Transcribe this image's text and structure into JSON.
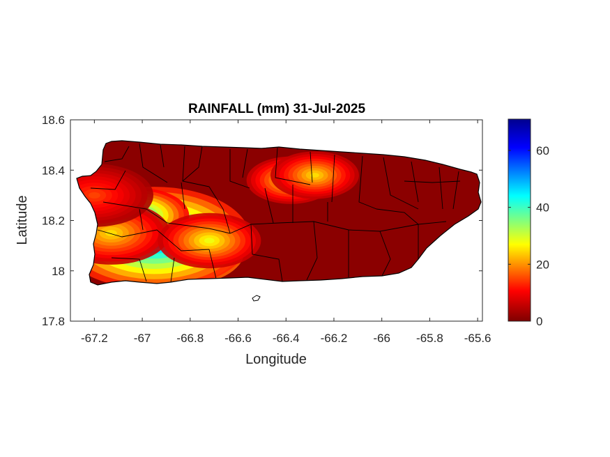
{
  "map": {
    "title": "RAINFALL (mm) 31-Jul-2025",
    "xlabel": "Longitude",
    "ylabel": "Latitude",
    "xlim": [
      -67.3,
      -65.58
    ],
    "ylim": [
      17.8,
      18.6
    ],
    "xticks": [
      -67.2,
      -67,
      -66.8,
      -66.6,
      -66.4,
      -66.2,
      -66,
      -65.8,
      -65.6
    ],
    "yticks": [
      17.8,
      18,
      18.2,
      18.4,
      18.6
    ],
    "xtick_labels": [
      "-67.2",
      "-67",
      "-66.8",
      "-66.6",
      "-66.4",
      "-66.2",
      "-66",
      "-65.8",
      "-65.6"
    ],
    "ytick_labels": [
      "17.8",
      "18",
      "18.2",
      "18.4",
      "18.6"
    ],
    "colorbar": {
      "min": 0,
      "max": 71,
      "ticks": [
        0,
        20,
        40,
        60
      ],
      "tick_labels": [
        "0",
        "20",
        "40",
        "60"
      ],
      "colors": [
        "#7f0000",
        "#ff0000",
        "#ffff00",
        "#00ffff",
        "#0000ff",
        "#00008f"
      ]
    },
    "background_color": "#8b0000",
    "rainfall_hotspots": [
      {
        "lon": -66.85,
        "lat": 18.08,
        "mm": 71,
        "spread": 0.09
      },
      {
        "lon": -66.95,
        "lat": 18.13,
        "mm": 55,
        "spread": 0.13
      },
      {
        "lon": -67.02,
        "lat": 18.22,
        "mm": 45,
        "spread": 0.07
      },
      {
        "lon": -67.13,
        "lat": 18.15,
        "mm": 25,
        "spread": 0.08
      },
      {
        "lon": -66.72,
        "lat": 18.12,
        "mm": 28,
        "spread": 0.07
      },
      {
        "lon": -66.38,
        "lat": 18.36,
        "mm": 27,
        "spread": 0.06
      },
      {
        "lon": -66.28,
        "lat": 18.38,
        "mm": 25,
        "spread": 0.06
      },
      {
        "lon": -67.2,
        "lat": 18.3,
        "mm": 15,
        "spread": 0.08
      }
    ]
  }
}
